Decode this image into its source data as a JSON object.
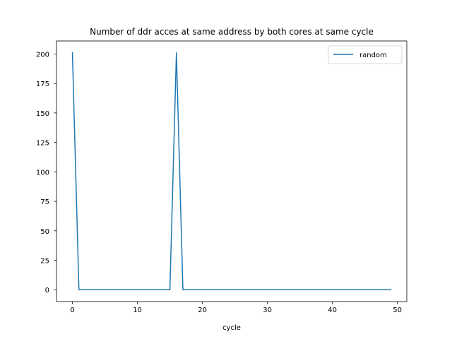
{
  "chart_data": {
    "type": "line",
    "title": "Number of ddr acces at same address by both cores at same cycle",
    "xlabel": "cycle",
    "ylabel": "",
    "xlim": [
      -2.45,
      51.45
    ],
    "ylim": [
      -10.05,
      211.05
    ],
    "xticks": [
      0,
      10,
      20,
      30,
      40,
      50
    ],
    "yticks": [
      0,
      25,
      50,
      75,
      100,
      125,
      150,
      175,
      200
    ],
    "grid": false,
    "legend": "top-right",
    "series": [
      {
        "name": "random",
        "color": "#1f77b4",
        "x": [
          0,
          1,
          2,
          3,
          4,
          5,
          6,
          7,
          8,
          9,
          10,
          11,
          12,
          13,
          14,
          15,
          16,
          17,
          18,
          19,
          20,
          21,
          22,
          23,
          24,
          25,
          26,
          27,
          28,
          29,
          30,
          31,
          32,
          33,
          34,
          35,
          36,
          37,
          38,
          39,
          40,
          41,
          42,
          43,
          44,
          45,
          46,
          47,
          48,
          49
        ],
        "y": [
          201,
          0,
          0,
          0,
          0,
          0,
          0,
          0,
          0,
          0,
          0,
          0,
          0,
          0,
          0,
          0,
          201,
          0,
          0,
          0,
          0,
          0,
          0,
          0,
          0,
          0,
          0,
          0,
          0,
          0,
          0,
          0,
          0,
          0,
          0,
          0,
          0,
          0,
          0,
          0,
          0,
          0,
          0,
          0,
          0,
          0,
          0,
          0,
          0,
          0
        ]
      }
    ]
  }
}
